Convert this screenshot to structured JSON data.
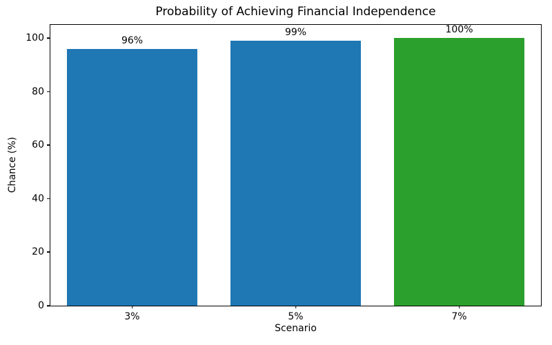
{
  "chart_data": {
    "type": "bar",
    "title": "Probability of Achieving Financial Independence",
    "xlabel": "Scenario",
    "ylabel": "Chance (%)",
    "categories": [
      "3%",
      "5%",
      "7%"
    ],
    "values": [
      96,
      99,
      100
    ],
    "bar_labels": [
      "96%",
      "99%",
      "100%"
    ],
    "bar_colors": [
      "#1f77b4",
      "#1f77b4",
      "#2ca02c"
    ],
    "ylim": [
      0,
      105
    ],
    "yticks": [
      0,
      20,
      40,
      60,
      80,
      100
    ],
    "bar_width_fraction": 0.8,
    "grid": false,
    "legend": "none",
    "background_color": "#ffffff",
    "spine_color": "#000000",
    "text_color": "#000000"
  }
}
